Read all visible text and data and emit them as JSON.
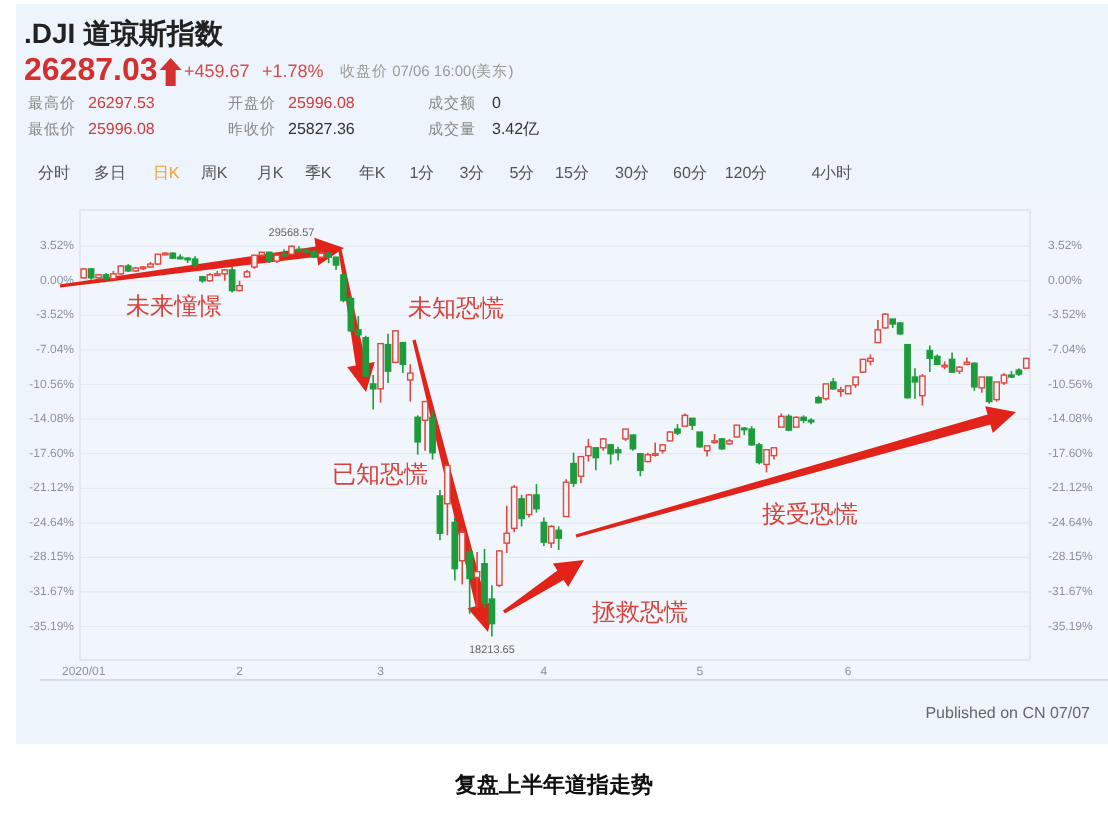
{
  "chart_data": {
    "type": "candlestick",
    "title": ".DJI 道琼斯指数",
    "categories": [
      "2020/01",
      null,
      null,
      null,
      null,
      null,
      null,
      null,
      null,
      null,
      null,
      null,
      null,
      null,
      null,
      null,
      null,
      null,
      null,
      null,
      null,
      "2",
      null,
      null,
      null,
      null,
      null,
      null,
      null,
      null,
      null,
      null,
      null,
      null,
      null,
      null,
      null,
      null,
      null,
      null,
      "3",
      null,
      null,
      null,
      null,
      null,
      null,
      null,
      null,
      null,
      null,
      null,
      null,
      null,
      null,
      null,
      null,
      null,
      null,
      null,
      null,
      null,
      "4",
      null,
      null,
      null,
      null,
      null,
      null,
      null,
      null,
      null,
      null,
      null,
      null,
      null,
      null,
      null,
      null,
      null,
      null,
      null,
      null,
      "5",
      null,
      null,
      null,
      null,
      null,
      null,
      null,
      null,
      null,
      null,
      null,
      null,
      null,
      null,
      null,
      null,
      null,
      null,
      null,
      "6",
      null,
      null,
      null,
      null,
      null,
      null,
      null,
      null,
      null,
      null,
      null,
      null,
      null,
      null,
      null,
      null,
      null,
      null,
      null,
      null,
      null,
      null,
      null,
      null
    ],
    "ohlc": [
      [
        0.3,
        1.3,
        0.2,
        1.2
      ],
      [
        1.2,
        1.3,
        0.1,
        0.3
      ],
      [
        0.3,
        0.7,
        0.1,
        0.6
      ],
      [
        0.6,
        0.8,
        0.0,
        0.2
      ],
      [
        0.2,
        1.0,
        0.1,
        0.7
      ],
      [
        0.7,
        1.6,
        0.6,
        1.5
      ],
      [
        1.5,
        1.7,
        0.9,
        1.0
      ],
      [
        1.0,
        1.4,
        0.9,
        1.3
      ],
      [
        1.3,
        1.5,
        1.1,
        1.4
      ],
      [
        1.4,
        1.9,
        1.3,
        1.7
      ],
      [
        1.7,
        2.7,
        1.6,
        2.7
      ],
      [
        2.7,
        2.9,
        2.6,
        2.8
      ],
      [
        2.8,
        2.9,
        2.2,
        2.3
      ],
      [
        2.4,
        2.7,
        2.2,
        2.3
      ],
      [
        2.3,
        2.4,
        1.8,
        2.2
      ],
      [
        2.2,
        2.5,
        1.3,
        1.6
      ],
      [
        0.4,
        0.5,
        -0.2,
        0.0
      ],
      [
        0.0,
        0.8,
        -0.1,
        0.6
      ],
      [
        0.6,
        1.0,
        0.6,
        0.7
      ],
      [
        0.7,
        1.2,
        0.0,
        1.1
      ],
      [
        1.1,
        1.4,
        -1.2,
        -1.0
      ],
      [
        -1.0,
        0.0,
        -1.1,
        -0.5
      ],
      [
        0.4,
        1.1,
        0.3,
        0.9
      ],
      [
        1.4,
        2.6,
        1.2,
        2.6
      ],
      [
        2.6,
        2.9,
        2.4,
        2.9
      ],
      [
        2.9,
        2.9,
        1.8,
        2.0
      ],
      [
        2.0,
        2.6,
        1.8,
        2.6
      ],
      [
        2.7,
        3.2,
        2.5,
        2.6
      ],
      [
        2.7,
        3.6,
        2.7,
        3.5
      ],
      [
        3.2,
        3.5,
        2.8,
        3.1
      ],
      [
        3.1,
        3.3,
        2.8,
        3.0
      ],
      [
        3.0,
        3.0,
        2.3,
        2.4
      ],
      [
        2.4,
        3.0,
        2.4,
        2.8
      ],
      [
        2.8,
        2.9,
        1.8,
        2.4
      ],
      [
        2.4,
        2.4,
        1.1,
        1.6
      ],
      [
        0.6,
        0.6,
        -2.2,
        -2.0
      ],
      [
        -1.8,
        -1.5,
        -5.2,
        -5.1
      ],
      [
        -5.0,
        -3.6,
        -5.7,
        -5.5
      ],
      [
        -5.8,
        -5.6,
        -9.8,
        -9.7
      ],
      [
        -10.5,
        -9.6,
        -13.1,
        -11.0
      ],
      [
        -11.0,
        -6.4,
        -12.4,
        -6.4
      ],
      [
        -6.5,
        -5.4,
        -10.4,
        -9.2
      ],
      [
        -8.3,
        -5.1,
        -8.4,
        -5.1
      ],
      [
        -6.3,
        -6.3,
        -9.4,
        -8.5
      ],
      [
        -10.1,
        -8.5,
        -12.3,
        -9.4
      ],
      [
        -13.9,
        -13.7,
        -17.7,
        -16.4
      ],
      [
        -14.2,
        -12.3,
        -17.3,
        -12.3
      ],
      [
        -13.9,
        -13.2,
        -18.2,
        -17.5
      ],
      [
        -21.9,
        -21.3,
        -26.4,
        -25.7
      ],
      [
        -22.7,
        -18.8,
        -25.9,
        -18.8
      ],
      [
        -24.6,
        -24.1,
        -30.5,
        -29.3
      ],
      [
        -28.5,
        -25.2,
        -30.9,
        -25.6
      ],
      [
        -27.6,
        -27.1,
        -33.9,
        -30.3
      ],
      [
        -30.2,
        -27.6,
        -33.3,
        -29.6
      ],
      [
        -28.8,
        -27.3,
        -33.3,
        -32.8
      ],
      [
        -32.4,
        -31.0,
        -36.2,
        -34.9
      ],
      [
        -31.0,
        -27.4,
        -31.2,
        -27.5
      ],
      [
        -26.7,
        -22.9,
        -27.7,
        -25.7
      ],
      [
        -25.2,
        -20.8,
        -25.6,
        -21.0
      ],
      [
        -22.2,
        -21.8,
        -25.0,
        -24.2
      ],
      [
        -23.8,
        -21.7,
        -24.1,
        -21.8
      ],
      [
        -21.8,
        -20.7,
        -23.6,
        -23.2
      ],
      [
        -24.6,
        -24.1,
        -27.0,
        -26.6
      ],
      [
        -26.7,
        -24.9,
        -27.2,
        -25.0
      ],
      [
        -25.4,
        -25.0,
        -27.4,
        -26.2
      ],
      [
        -24.0,
        -20.2,
        -24.0,
        -20.5
      ],
      [
        -18.6,
        -17.5,
        -21.0,
        -20.6
      ],
      [
        -19.9,
        -17.9,
        -20.6,
        -17.9
      ],
      [
        -17.8,
        -16.1,
        -18.4,
        -16.9
      ],
      [
        -17.0,
        -17.0,
        -19.3,
        -18.0
      ],
      [
        -17.0,
        -16.0,
        -17.3,
        -16.1
      ],
      [
        -16.7,
        -16.6,
        -18.7,
        -17.6
      ],
      [
        -17.2,
        -16.9,
        -18.3,
        -17.5
      ],
      [
        -16.1,
        -15.1,
        -16.3,
        -15.1
      ],
      [
        -15.7,
        -15.7,
        -17.3,
        -17.1
      ],
      [
        -17.6,
        -17.6,
        -19.9,
        -19.3
      ],
      [
        -18.4,
        -17.5,
        -18.5,
        -17.7
      ],
      [
        -17.7,
        -16.5,
        -17.9,
        -17.6
      ],
      [
        -17.3,
        -16.6,
        -17.6,
        -16.7
      ],
      [
        -16.3,
        -15.3,
        -16.3,
        -15.4
      ],
      [
        -15.1,
        -14.6,
        -15.7,
        -15.5
      ],
      [
        -14.8,
        -13.5,
        -14.8,
        -13.7
      ],
      [
        -14.0,
        -14.0,
        -15.2,
        -14.7
      ],
      [
        -15.4,
        -15.4,
        -17.0,
        -16.9
      ],
      [
        -17.3,
        -16.8,
        -17.9,
        -16.8
      ],
      [
        -16.3,
        -15.6,
        -16.6,
        -16.3
      ],
      [
        -16.1,
        -16.0,
        -17.2,
        -17.1
      ],
      [
        -16.6,
        -16.1,
        -16.7,
        -16.3
      ],
      [
        -15.9,
        -14.7,
        -15.9,
        -14.7
      ],
      [
        -15.0,
        -14.9,
        -15.7,
        -15.1
      ],
      [
        -15.1,
        -14.8,
        -16.8,
        -16.7
      ],
      [
        -16.7,
        -16.5,
        -18.7,
        -18.5
      ],
      [
        -18.7,
        -17.2,
        -19.5,
        -17.2
      ],
      [
        -17.8,
        -17.0,
        -18.2,
        -17.0
      ],
      [
        -14.9,
        -13.5,
        -14.9,
        -13.8
      ],
      [
        -13.8,
        -13.6,
        -15.3,
        -15.2
      ],
      [
        -14.9,
        -13.8,
        -14.9,
        -13.9
      ],
      [
        -13.9,
        -13.7,
        -14.5,
        -14.2
      ],
      [
        -14.2,
        -14.0,
        -14.6,
        -14.3
      ],
      [
        -11.9,
        -11.7,
        -12.5,
        -12.4
      ],
      [
        -12.0,
        -10.5,
        -12.2,
        -10.5
      ],
      [
        -10.3,
        -9.9,
        -11.1,
        -11.0
      ],
      [
        -11.2,
        -10.8,
        -11.8,
        -11.1
      ],
      [
        -11.5,
        -10.6,
        -11.5,
        -10.7
      ],
      [
        -10.6,
        -9.8,
        -10.9,
        -9.8
      ],
      [
        -9.3,
        -8.0,
        -9.4,
        -8.0
      ],
      [
        -8.2,
        -7.5,
        -8.6,
        -7.9
      ],
      [
        -6.3,
        -4.0,
        -6.3,
        -5.0
      ],
      [
        -4.8,
        -3.3,
        -4.9,
        -3.4
      ],
      [
        -3.9,
        -3.9,
        -4.8,
        -4.4
      ],
      [
        -4.3,
        -4.2,
        -5.5,
        -5.4
      ],
      [
        -6.5,
        -6.5,
        -12.0,
        -11.9
      ],
      [
        -9.8,
        -8.9,
        -12.0,
        -10.3
      ],
      [
        -11.7,
        -9.5,
        -12.7,
        -9.7
      ],
      [
        -7.1,
        -6.6,
        -9.3,
        -7.9
      ],
      [
        -7.7,
        -7.5,
        -8.6,
        -8.5
      ],
      [
        -8.7,
        -8.2,
        -9.0,
        -8.6
      ],
      [
        -8.0,
        -7.3,
        -9.4,
        -9.3
      ],
      [
        -9.2,
        -8.7,
        -9.5,
        -8.8
      ],
      [
        -8.5,
        -7.8,
        -8.6,
        -8.3
      ],
      [
        -8.4,
        -8.3,
        -11.2,
        -10.8
      ],
      [
        -10.9,
        -9.8,
        -11.4,
        -9.8
      ],
      [
        -9.8,
        -9.8,
        -12.5,
        -12.3
      ],
      [
        -12.1,
        -10.3,
        -12.3,
        -10.3
      ],
      [
        -10.4,
        -9.4,
        -10.6,
        -9.6
      ],
      [
        -9.6,
        -9.2,
        -9.9,
        -9.8
      ],
      [
        -9.1,
        -8.9,
        -9.7,
        -9.5
      ],
      [
        -8.9,
        -7.9,
        -8.9,
        -7.9
      ]
    ],
    "ylim": [
      -38.6,
      7.2
    ],
    "yticks": [
      {
        "value": 3.52,
        "label": "3.52%"
      },
      {
        "value": 0,
        "label": "0.00%"
      },
      {
        "value": -3.52,
        "label": "-3.52%"
      },
      {
        "value": -7.04,
        "label": "-7.04%"
      },
      {
        "value": -10.56,
        "label": "-10.56%"
      },
      {
        "value": -14.08,
        "label": "-14.08%"
      },
      {
        "value": -17.6,
        "label": "-17.60%"
      },
      {
        "value": -21.12,
        "label": "-21.12%"
      },
      {
        "value": -24.64,
        "label": "-24.64%"
      },
      {
        "value": -28.15,
        "label": "-28.15%"
      },
      {
        "value": -31.67,
        "label": "-31.67%"
      },
      {
        "value": -35.19,
        "label": "-35.19%"
      }
    ],
    "y2lim": [
      -38.6,
      7.2
    ],
    "y2ticks": [
      {
        "value": 3.52,
        "label": "3.52%"
      },
      {
        "value": 0,
        "label": "0.00%"
      },
      {
        "value": -3.52,
        "label": "-3.52%"
      },
      {
        "value": -7.04,
        "label": "-7.04%"
      },
      {
        "value": -10.56,
        "label": "-10.56%"
      },
      {
        "value": -14.08,
        "label": "-14.08%"
      },
      {
        "value": -17.6,
        "label": "-17.60%"
      },
      {
        "value": -21.12,
        "label": "-21.12%"
      },
      {
        "value": -24.64,
        "label": "-24.64%"
      },
      {
        "value": -28.15,
        "label": "-28.15%"
      },
      {
        "value": -31.67,
        "label": "-31.67%"
      },
      {
        "value": -35.19,
        "label": "-35.19%"
      }
    ],
    "grid": "y",
    "annotations": [
      "26287.03",
      "+459.67",
      "+1.78%",
      "收盘价 07/06 16:00(美东)",
      "最高价",
      "26297.53",
      "开盘价",
      "25996.08",
      "成交额",
      "0",
      "最低价",
      "25996.08",
      "昨收价",
      "25827.36",
      "成交量",
      "3.42亿",
      "分时",
      "多日",
      "日K",
      "周K",
      "月K",
      "季K",
      "年K",
      "1分",
      "3分",
      "5分",
      "15分",
      "30分",
      "60分",
      "120分",
      "4小时",
      {
        "text": "29568.57",
        "y": 3.6
      },
      {
        "text": "18213.65",
        "y": -36.2
      },
      "未来憧憬",
      "未知恐慌",
      "已知恐慌",
      "拯救恐慌",
      "接受恐慌",
      "Published on CN 07/07",
      "复盘上半年道指走势"
    ]
  }
}
